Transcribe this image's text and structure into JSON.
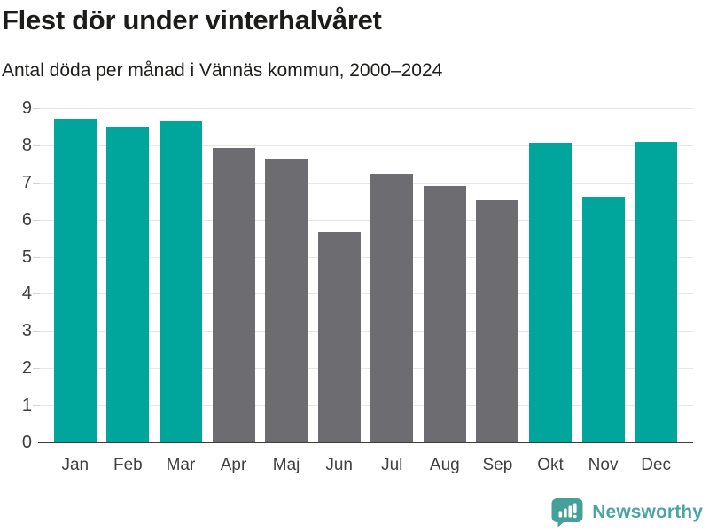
{
  "header": {
    "title": "Flest dör under vinterhalvåret",
    "subtitle": "Antal döda per månad i Vännäs kommun, 2000–2024"
  },
  "chart_data": {
    "type": "bar",
    "title": "Flest dör under vinterhalvåret",
    "subtitle": "Antal döda per månad i Vännäs kommun, 2000–2024",
    "categories": [
      "Jan",
      "Feb",
      "Mar",
      "Apr",
      "Maj",
      "Jun",
      "Jul",
      "Aug",
      "Sep",
      "Okt",
      "Nov",
      "Dec"
    ],
    "values": [
      8.72,
      8.5,
      8.66,
      7.93,
      7.64,
      5.66,
      7.24,
      6.9,
      6.52,
      8.06,
      6.62,
      8.1
    ],
    "bar_colors": [
      "#00a59c",
      "#00a59c",
      "#00a59c",
      "#6c6c71",
      "#6c6c71",
      "#6c6c71",
      "#6c6c71",
      "#6c6c71",
      "#6c6c71",
      "#00a59c",
      "#00a59c",
      "#00a59c"
    ],
    "highlight_color": "#00a59c",
    "base_color": "#6c6c71",
    "highlighted_months": [
      "Jan",
      "Feb",
      "Mar",
      "Okt",
      "Nov",
      "Dec"
    ],
    "xlabel": "",
    "ylabel": "",
    "ylim": [
      0,
      9
    ],
    "yticks": [
      0,
      1,
      2,
      3,
      4,
      5,
      6,
      7,
      8,
      9
    ],
    "grid": "horizontal",
    "legend": "none"
  },
  "branding": {
    "name": "Newsworthy",
    "icon": "newsworthy-speech-bubble-chart-icon",
    "text_color": "#4ba5a0",
    "icon_color": "#45a09a"
  },
  "colors": {
    "background": "#ffffff",
    "title_text": "#1c1c1a",
    "axis_text": "#3d3d3d",
    "gridline": "#e7e7e7",
    "axis_line": "#3d3d3d"
  }
}
